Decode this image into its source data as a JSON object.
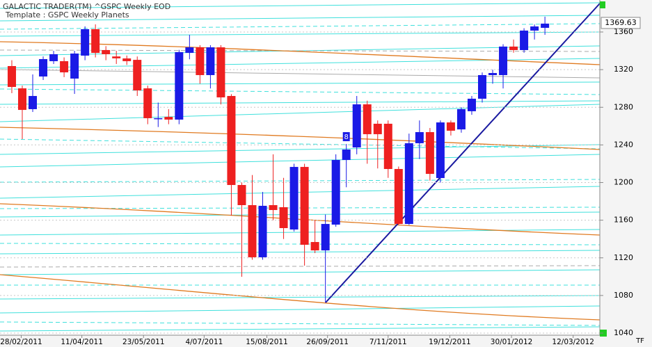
{
  "chart_data": {
    "type": "candlestick",
    "title": "GALACTIC TRADER(TM)   ^GSPC Weekly EOD",
    "subtitle": "Template : GSPC Weekly Planets",
    "x": [
      0,
      1,
      2,
      3,
      4,
      5,
      6,
      7,
      8,
      9,
      10,
      11,
      12,
      13,
      14,
      15,
      16,
      17,
      18,
      19,
      20,
      21,
      22,
      23,
      24,
      25,
      26,
      27,
      28,
      29,
      30,
      31,
      32,
      33,
      34,
      35,
      36,
      37,
      38,
      39,
      40,
      41,
      42,
      43,
      44,
      45,
      46,
      47,
      48,
      49,
      50,
      51
    ],
    "open": [
      1323.8,
      1300.1,
      1278,
      1312.7,
      1329,
      1329,
      1310.5,
      1334.9,
      1363,
      1340.8,
      1334,
      1331.9,
      1330.4,
      1300.1,
      1267.8,
      1269.8,
      1266.9,
      1337.8,
      1343.7,
      1314.2,
      1343.7,
      1292,
      1197.4,
      1176,
      1120.6,
      1176,
      1173.8,
      1150.1,
      1216.6,
      1136.8,
      1127.9,
      1155.3,
      1224,
      1237.3,
      1283.1,
      1262.5,
      1262.5,
      1214.4,
      1156,
      1241.8,
      1253.6,
      1204.8,
      1263.9,
      1256.5,
      1275.8,
      1289.1,
      1314.2,
      1314.2,
      1344.5,
      1340.8,
      1361.5,
      1364.4
    ],
    "high": [
      1330,
      1303,
      1314.9,
      1334,
      1340,
      1333,
      1340,
      1366,
      1368.1,
      1345,
      1340,
      1335,
      1334,
      1303,
      1285,
      1278,
      1341,
      1357,
      1346,
      1346,
      1346,
      1294,
      1200,
      1208,
      1190,
      1230,
      1205,
      1220,
      1220,
      1160,
      1166,
      1230,
      1241,
      1292,
      1287,
      1266,
      1266,
      1217,
      1252,
      1266,
      1258,
      1266,
      1266,
      1280,
      1292,
      1317,
      1320,
      1347,
      1352,
      1364,
      1368,
      1376.3
    ],
    "low": [
      1295,
      1246.2,
      1275,
      1309,
      1326,
      1312,
      1294.2,
      1330,
      1333,
      1330,
      1326,
      1325,
      1292,
      1262,
      1259,
      1262,
      1262,
      1331,
      1305,
      1300,
      1283,
      1164.9,
      1099.9,
      1118,
      1118,
      1160,
      1140,
      1148,
      1111.7,
      1125,
      1072.5,
      1153,
      1195,
      1230,
      1220,
      1215,
      1205,
      1155,
      1155,
      1225,
      1202,
      1200,
      1250,
      1253,
      1272,
      1285,
      1305,
      1300,
      1338,
      1338,
      1352,
      1357
    ],
    "close": [
      1301.6,
      1277.2,
      1292,
      1331.2,
      1336.4,
      1317.1,
      1337.1,
      1363,
      1337.8,
      1336.4,
      1332,
      1329,
      1297.9,
      1268.4,
      1268.4,
      1266.9,
      1338.6,
      1343.7,
      1314.2,
      1343.7,
      1290.5,
      1197.4,
      1176,
      1120.6,
      1175.3,
      1170.8,
      1151.6,
      1216.6,
      1133.9,
      1127.9,
      1156,
      1224,
      1235.1,
      1283.1,
      1251.4,
      1251.4,
      1214.4,
      1156,
      1241.8,
      1253.6,
      1209.2,
      1263.9,
      1255.1,
      1278,
      1289.1,
      1314.2,
      1316.4,
      1344.5,
      1340.8,
      1361.5,
      1365.9,
      1368.9
    ],
    "up_color": "#1a1ae6",
    "down_color": "#ee2020",
    "xlim": [
      -1.13,
      56.25
    ],
    "xticks": [
      {
        "value": 0.9,
        "label": "28/02/2011"
      },
      {
        "value": 6.7,
        "label": "11/04/2011"
      },
      {
        "value": 12.6,
        "label": "23/05/2011"
      },
      {
        "value": 18.4,
        "label": "4/07/2011"
      },
      {
        "value": 24.4,
        "label": "15/08/2011"
      },
      {
        "value": 30.2,
        "label": "26/09/2011"
      },
      {
        "value": 36,
        "label": "7/11/2011"
      },
      {
        "value": 41.9,
        "label": "19/12/2011"
      },
      {
        "value": 47.8,
        "label": "30/01/2012"
      },
      {
        "value": 53.7,
        "label": "12/03/2012"
      }
    ],
    "ylim": [
      1037.8,
      1394
    ],
    "yticks": [
      1040,
      1080,
      1120,
      1160,
      1200,
      1240,
      1280,
      1320,
      1360
    ],
    "last_price": 1369.63,
    "marker_label": "8",
    "corner_label": "TF"
  }
}
